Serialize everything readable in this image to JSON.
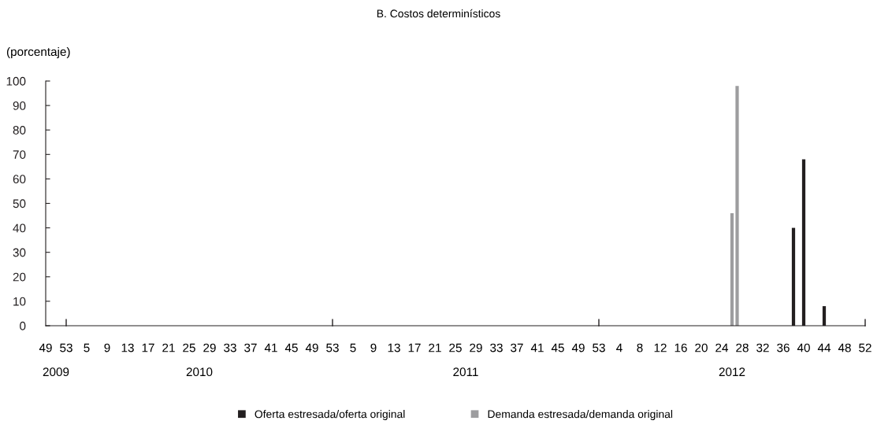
{
  "chart_data": {
    "type": "bar",
    "title": "B. Costos determinísticos",
    "ylabel": "(porcentaje)",
    "categories": [
      "49",
      null,
      null,
      null,
      "53",
      null,
      null,
      null,
      "5",
      null,
      null,
      null,
      "9",
      null,
      null,
      null,
      "13",
      null,
      null,
      null,
      "17",
      null,
      null,
      null,
      "21",
      null,
      null,
      null,
      "25",
      null,
      null,
      null,
      "29",
      null,
      null,
      null,
      "33",
      null,
      null,
      null,
      "37",
      null,
      null,
      null,
      "41",
      null,
      null,
      null,
      "45",
      null,
      null,
      null,
      "49",
      null,
      null,
      null,
      "53",
      null,
      null,
      null,
      "5",
      null,
      null,
      null,
      "9",
      null,
      null,
      null,
      "13",
      null,
      null,
      null,
      "17",
      null,
      null,
      null,
      "21",
      null,
      null,
      null,
      "25",
      null,
      null,
      null,
      "29",
      null,
      null,
      null,
      "33",
      null,
      null,
      null,
      "37",
      null,
      null,
      null,
      "41",
      null,
      null,
      null,
      "45",
      null,
      null,
      null,
      "49",
      null,
      null,
      null,
      "53",
      null,
      null,
      null,
      "4",
      null,
      null,
      null,
      "8",
      null,
      null,
      null,
      "12",
      null,
      null,
      null,
      "16",
      null,
      null,
      null,
      "20",
      null,
      null,
      null,
      "24",
      null,
      null,
      null,
      "28",
      null,
      null,
      null,
      "32",
      null,
      null,
      null,
      "36",
      null,
      null,
      null,
      "40",
      null,
      null,
      null,
      "44",
      null,
      null,
      null,
      "48",
      null,
      null,
      null,
      "52"
    ],
    "series": [
      {
        "name": "Oferta estresada/oferta original",
        "color": "#231f20",
        "values": [
          0,
          0,
          0,
          0,
          0,
          0,
          0,
          0,
          0,
          0,
          0,
          0,
          0,
          0,
          0,
          0,
          0,
          0,
          0,
          0,
          0,
          0,
          0,
          0,
          0,
          0,
          0,
          0,
          0,
          0,
          0,
          0,
          0,
          0,
          0,
          0,
          0,
          0,
          0,
          0,
          0,
          0,
          0,
          0,
          0,
          0,
          0,
          0,
          0,
          0,
          0,
          0,
          0,
          0,
          0,
          0,
          0,
          0,
          0,
          0,
          0,
          0,
          0,
          0,
          0,
          0,
          0,
          0,
          0,
          0,
          0,
          0,
          0,
          0,
          0,
          0,
          0,
          0,
          0,
          0,
          0,
          0,
          0,
          0,
          0,
          0,
          0,
          0,
          0,
          0,
          0,
          0,
          0,
          0,
          0,
          0,
          0,
          0,
          0,
          0,
          0,
          0,
          0,
          0,
          0,
          0,
          0,
          0,
          0,
          0,
          0,
          0,
          0,
          0,
          0,
          0,
          0,
          0,
          0,
          0,
          0,
          0,
          0,
          0,
          0,
          0,
          0,
          0,
          0,
          0,
          0,
          0,
          0,
          0,
          0,
          0,
          0,
          0,
          0,
          0,
          0,
          0,
          0,
          0,
          0,
          0,
          40,
          0,
          68,
          0,
          0,
          0,
          8,
          0,
          0,
          0,
          0,
          0,
          0,
          0,
          0
        ]
      },
      {
        "name": "Demanda estresada/demanda original",
        "color": "#9d9d9f",
        "values": [
          0,
          0,
          0,
          0,
          0,
          0,
          0,
          0,
          0,
          0,
          0,
          0,
          0,
          0,
          0,
          0,
          0,
          0,
          0,
          0,
          0,
          0,
          0,
          0,
          0,
          0,
          0,
          0,
          0,
          0,
          0,
          0,
          0,
          0,
          0,
          0,
          0,
          0,
          0,
          0,
          0,
          0,
          0,
          0,
          0,
          0,
          0,
          0,
          0,
          0,
          0,
          0,
          0,
          0,
          0,
          0,
          0,
          0,
          0,
          0,
          0,
          0,
          0,
          0,
          0,
          0,
          0,
          0,
          0,
          0,
          0,
          0,
          0,
          0,
          0,
          0,
          0,
          0,
          0,
          0,
          0,
          0,
          0,
          0,
          0,
          0,
          0,
          0,
          0,
          0,
          0,
          0,
          0,
          0,
          0,
          0,
          0,
          0,
          0,
          0,
          0,
          0,
          0,
          0,
          0,
          0,
          0,
          0,
          0,
          0,
          0,
          0,
          0,
          0,
          0,
          0,
          0,
          0,
          0,
          0,
          0,
          0,
          0,
          0,
          0,
          0,
          0,
          0,
          0,
          0,
          0,
          0,
          0,
          0,
          46,
          98,
          0,
          0,
          0,
          0,
          0,
          0,
          0,
          0,
          0,
          0,
          0,
          0,
          0,
          0,
          0,
          0,
          0,
          0,
          0,
          0,
          0,
          0,
          0,
          0,
          0
        ]
      }
    ],
    "ylim": [
      0,
      100
    ],
    "yticks": [
      0,
      10,
      20,
      30,
      40,
      50,
      60,
      70,
      80,
      90,
      100
    ],
    "annotations": [
      "2009",
      "2010",
      "2011",
      "2012"
    ],
    "legend": "bottom",
    "grid": false
  }
}
